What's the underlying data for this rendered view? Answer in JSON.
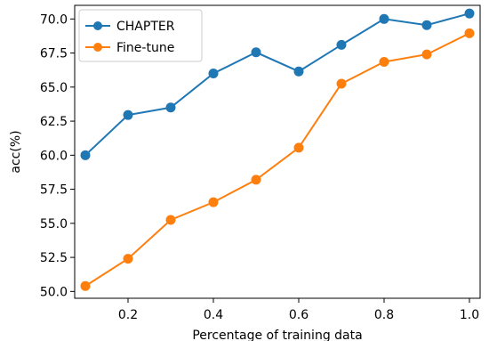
{
  "chart_data": {
    "type": "line",
    "title": "",
    "xlabel": "Percentage of training data",
    "ylabel": "acc(%)",
    "x": [
      0.1,
      0.2,
      0.3,
      0.4,
      0.5,
      0.6,
      0.7,
      0.8,
      0.9,
      1.0
    ],
    "xlim": [
      0.075,
      1.025
    ],
    "ylim": [
      49.5,
      71.0
    ],
    "xticks": [
      0.2,
      0.4,
      0.6,
      0.8,
      1.0
    ],
    "xtick_labels": [
      "0.2",
      "0.4",
      "0.6",
      "0.8",
      "1.0"
    ],
    "yticks": [
      50.0,
      52.5,
      55.0,
      57.5,
      60.0,
      62.5,
      65.0,
      67.5,
      70.0
    ],
    "ytick_labels": [
      "50.0",
      "52.5",
      "55.0",
      "57.5",
      "60.0",
      "62.5",
      "65.0",
      "67.5",
      "70.0"
    ],
    "grid": false,
    "legend_position": "top-left",
    "series": [
      {
        "name": "CHAPTER",
        "color": "#1f77b4",
        "values": [
          60.0,
          62.95,
          63.5,
          66.0,
          67.55,
          66.15,
          68.1,
          70.0,
          69.55,
          70.4
        ]
      },
      {
        "name": "Fine-tune",
        "color": "#ff7f0e",
        "values": [
          50.4,
          52.4,
          55.25,
          56.55,
          58.2,
          60.55,
          65.25,
          66.85,
          67.4,
          68.95
        ]
      }
    ]
  }
}
